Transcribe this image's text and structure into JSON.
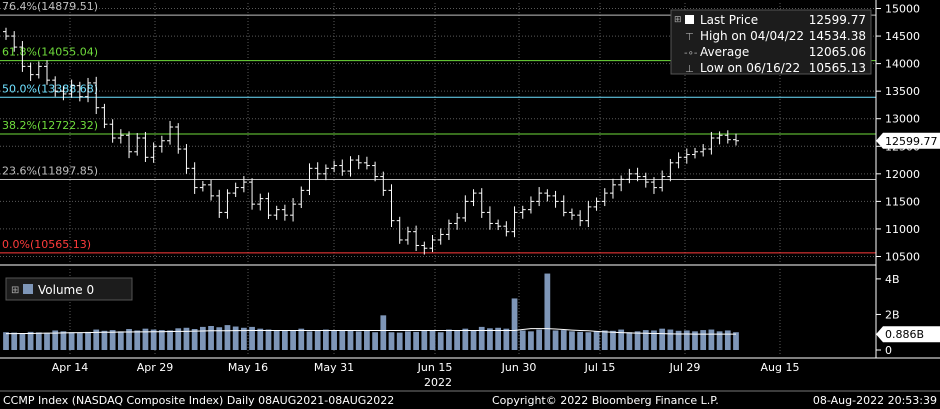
{
  "chart_data": {
    "type": "ohlc",
    "y_range": [
      10400,
      15100
    ],
    "y_ticks": [
      10500,
      11000,
      11500,
      12000,
      12500,
      13000,
      13500,
      14000,
      14500,
      15000
    ],
    "x_tick_labels": [
      "Apr 14",
      "Apr 29",
      "May 16",
      "May 31",
      "Jun 15",
      "Jun 30",
      "Jul 15",
      "Jul 29",
      "Aug 15"
    ],
    "x_year_label": "2022",
    "last_price_label": "12599.77",
    "fib_levels": [
      {
        "label": "76.4%(14879.51)",
        "value": 14879.51,
        "color": "#bfbfbf"
      },
      {
        "label": "61.8%(14055.04)",
        "value": 14055.04,
        "color": "#6fdc3c"
      },
      {
        "label": "50.0%(13388.68)",
        "value": 13388.68,
        "color": "#6ee0ff"
      },
      {
        "label": "38.2%(12722.32)",
        "value": 12722.32,
        "color": "#6fdc3c"
      },
      {
        "label": "23.6%(11897.85)",
        "value": 11897.85,
        "color": "#bfbfbf"
      },
      {
        "label": "0.0%(10565.13)",
        "value": 10565.13,
        "color": "#ff3b3b"
      }
    ],
    "legend": [
      {
        "marker": "square",
        "label": "Last Price",
        "value": "12599.77"
      },
      {
        "marker": "high",
        "label": "High on 04/04/22",
        "value": "14534.38"
      },
      {
        "marker": "avg",
        "label": "Average",
        "value": "12065.06"
      },
      {
        "marker": "low",
        "label": "Low on 06/16/22",
        "value": "10565.13"
      }
    ],
    "closes": [
      14500,
      14300,
      13950,
      13800,
      13950,
      13700,
      13500,
      13450,
      13600,
      13400,
      13650,
      13200,
      12900,
      12650,
      12700,
      12400,
      12650,
      12300,
      12500,
      12600,
      12850,
      12450,
      12100,
      11750,
      11800,
      11600,
      11300,
      11650,
      11750,
      11850,
      11450,
      11550,
      11250,
      11350,
      11250,
      11450,
      11700,
      12100,
      12000,
      12100,
      12150,
      12050,
      12250,
      12200,
      12150,
      11950,
      11700,
      11150,
      10800,
      10950,
      10700,
      10650,
      10800,
      10900,
      11100,
      11200,
      11500,
      11650,
      11300,
      11100,
      11050,
      10950,
      11300,
      11350,
      11500,
      11650,
      11600,
      11500,
      11300,
      11250,
      11150,
      11400,
      11500,
      11650,
      11800,
      11900,
      12000,
      11950,
      11850,
      11750,
      11950,
      12200,
      12300,
      12350,
      12400,
      12450,
      12650,
      12700,
      12620,
      12600
    ],
    "volume": {
      "label": "Volume",
      "value": "0",
      "y_ticks": [
        "4B",
        "2B",
        "0"
      ],
      "avg_label": "0.886B",
      "range": [
        0,
        4.5
      ],
      "bars": [
        1.0,
        0.98,
        0.95,
        1.02,
        0.99,
        0.97,
        1.1,
        1.05,
        1.0,
        0.98,
        1.02,
        1.15,
        1.08,
        1.12,
        1.05,
        1.18,
        1.1,
        1.2,
        1.15,
        1.12,
        1.1,
        1.22,
        1.25,
        1.18,
        1.3,
        1.35,
        1.28,
        1.4,
        1.32,
        1.25,
        1.3,
        1.2,
        1.15,
        1.1,
        1.12,
        1.1,
        1.2,
        1.05,
        1.1,
        1.15,
        1.1,
        1.12,
        1.08,
        1.05,
        1.1,
        1.0,
        1.95,
        1.0,
        0.98,
        1.05,
        1.02,
        1.1,
        1.08,
        1.0,
        1.15,
        1.12,
        1.2,
        1.1,
        1.3,
        1.22,
        1.25,
        1.2,
        1.15,
        1.1,
        1.05,
        1.15,
        1.08,
        1.1,
        1.12,
        1.05,
        1.02,
        1.0,
        1.05,
        1.1,
        1.08,
        1.15,
        1.0,
        1.05,
        1.12,
        1.1,
        1.2,
        1.15,
        1.08,
        1.1,
        1.05,
        1.12,
        1.15,
        1.05,
        1.1,
        1.0
      ],
      "spikes": [
        {
          "index": 62,
          "value": 2.9
        },
        {
          "index": 66,
          "value": 4.3
        }
      ],
      "avg_line": [
        0.92,
        0.92,
        0.93,
        0.93,
        0.94,
        0.95,
        0.95,
        0.96,
        0.97,
        0.98,
        0.98,
        0.99,
        1.0,
        1.0,
        1.01,
        1.01,
        1.02,
        1.02,
        1.03,
        1.03,
        1.04,
        1.05,
        1.05,
        1.06,
        1.07,
        1.08,
        1.08,
        1.08,
        1.09,
        1.09,
        1.1,
        1.1,
        1.1,
        1.1,
        1.1,
        1.1,
        1.1,
        1.1,
        1.1,
        1.1,
        1.1,
        1.1,
        1.1,
        1.1,
        1.1,
        1.1,
        1.1,
        1.1,
        1.1,
        1.1,
        1.1,
        1.1,
        1.1,
        1.1,
        1.1,
        1.1,
        1.1,
        1.1,
        1.1,
        1.1,
        1.1,
        1.1,
        1.1,
        1.15,
        1.2,
        1.2,
        1.2,
        1.18,
        1.15,
        1.12,
        1.1,
        1.08,
        1.05,
        1.02,
        1.0,
        0.98,
        0.96,
        0.95,
        0.94,
        0.93,
        0.92,
        0.91,
        0.9,
        0.9,
        0.89,
        0.89,
        0.89,
        0.89,
        0.89,
        0.89
      ]
    }
  },
  "footer": {
    "left": "CCMP Index (NASDAQ Composite Index)  Daily 08AUG2021-08AUG2022",
    "center": "Copyright© 2022 Bloomberg Finance L.P.",
    "right": "08-Aug-2022 20:53:39"
  },
  "colors": {
    "background": "#000000",
    "grid": "#5a5a5a",
    "price": "#ffffff",
    "volume_bar": "#7e96b8",
    "highlight": "#ffffff"
  }
}
